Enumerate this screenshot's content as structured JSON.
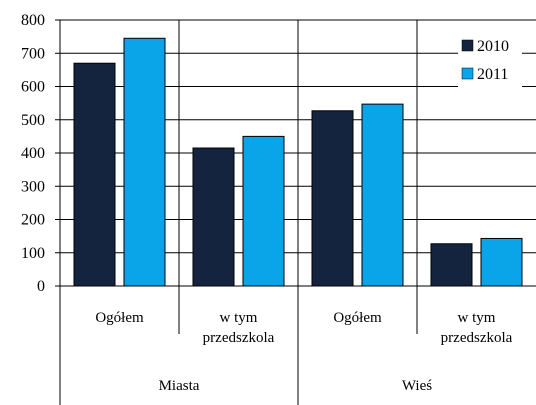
{
  "chart_data": {
    "type": "bar",
    "groups": [
      {
        "label": "Miasta",
        "categories": [
          "Ogółem",
          "w tym przedszkola"
        ]
      },
      {
        "label": "Wieś",
        "categories": [
          "Ogółem",
          "w tym przedszkola"
        ]
      }
    ],
    "categories": [
      [
        "Ogółem"
      ],
      [
        "w tym",
        "przedszkola"
      ],
      [
        "Ogółem"
      ],
      [
        "w tym",
        "przedszkola"
      ]
    ],
    "series": [
      {
        "name": "2010",
        "color": "#14243f",
        "values": [
          670,
          415,
          527,
          127
        ]
      },
      {
        "name": "2011",
        "color": "#0aa4e9",
        "values": [
          745,
          450,
          547,
          143
        ]
      }
    ],
    "yticks": [
      "0",
      "100",
      "200",
      "300",
      "400",
      "500",
      "600",
      "700",
      "800"
    ],
    "ylim": [
      0,
      800
    ],
    "grid": "major-y",
    "legend_position": "top-right",
    "title": "",
    "xlabel": "",
    "ylabel": ""
  }
}
